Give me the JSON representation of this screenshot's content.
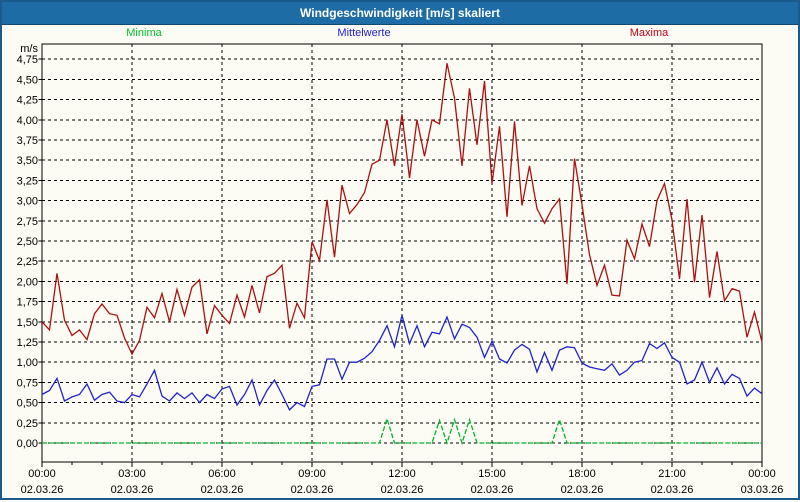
{
  "window": {
    "title": "Windgeschwindigkeit [m/s] skaliert"
  },
  "colors": {
    "title_bar_bg": "#1E6CA5",
    "title_text": "#FFFFFF",
    "window_border": "#1A5A8C",
    "background": "#FCFCF4",
    "grid": "#000000",
    "minima": "#00B42A",
    "mittelwerte": "#2222CC",
    "maxima": "#AC1010",
    "maxima_label": "#C00018"
  },
  "legend": [
    {
      "label": "Minima",
      "color": "#00C030"
    },
    {
      "label": "Mittelwerte",
      "color": "#2020D0"
    },
    {
      "label": "Maxima",
      "color": "#C00018"
    }
  ],
  "chart_data": {
    "type": "line",
    "title": "Windgeschwindigkeit [m/s] skaliert",
    "xlabel": "",
    "ylabel": "m/s",
    "ylim": [
      -0.24,
      4.94
    ],
    "x_hours_range": [
      0,
      24
    ],
    "x_start": 0,
    "x_step_hours": 0.25,
    "grid": "dashed",
    "legend_position": "top",
    "y_ticks": [
      0.0,
      0.25,
      0.5,
      0.75,
      1.0,
      1.25,
      1.5,
      1.75,
      2.0,
      2.25,
      2.5,
      2.75,
      3.0,
      3.25,
      3.5,
      3.75,
      4.0,
      4.25,
      4.5,
      4.75
    ],
    "y_tick_labels": [
      "0,00",
      "0,25",
      "0,50",
      "0,75",
      "1,00",
      "1,25",
      "1,50",
      "1,75",
      "2,00",
      "2,25",
      "2,50",
      "2,75",
      "3,00",
      "3,25",
      "3,50",
      "3,75",
      "4,00",
      "4,25",
      "4,50",
      "4,75"
    ],
    "x_ticks": [
      {
        "time": "00:00",
        "date": "02.03.26"
      },
      {
        "time": "03:00",
        "date": "02.03.26"
      },
      {
        "time": "06:00",
        "date": "02.03.26"
      },
      {
        "time": "09:00",
        "date": "02.03.26"
      },
      {
        "time": "12:00",
        "date": "02.03.26"
      },
      {
        "time": "15:00",
        "date": "02.03.26"
      },
      {
        "time": "18:00",
        "date": "02.03.26"
      },
      {
        "time": "21:00",
        "date": "02.03.26"
      },
      {
        "time": "00:00",
        "date": "03.03.26"
      }
    ],
    "series": [
      {
        "name": "Minima",
        "data_name": "minima-line",
        "color": "#00B42A",
        "dash": "5,2",
        "values": [
          0,
          0,
          0,
          0,
          0,
          0,
          0,
          0,
          0,
          0,
          0,
          0,
          0,
          0,
          0,
          0,
          0,
          0,
          0,
          0,
          0,
          0,
          0,
          0,
          0,
          0,
          0,
          0,
          0,
          0,
          0,
          0,
          0,
          0,
          0,
          0,
          0,
          0,
          0,
          0,
          0,
          0,
          0,
          0,
          0,
          0,
          0.3,
          0,
          0,
          0,
          0,
          0,
          0,
          0.28,
          0,
          0.29,
          0,
          0.29,
          0,
          0,
          0,
          0,
          0,
          0,
          0,
          0,
          0,
          0,
          0,
          0.29,
          0,
          0,
          0,
          0,
          0,
          0,
          0,
          0,
          0,
          0,
          0,
          0,
          0,
          0,
          0,
          0,
          0,
          0,
          0,
          0,
          0,
          0,
          0,
          0,
          0,
          0,
          0
        ]
      },
      {
        "name": "Mittelwerte",
        "data_name": "mittelwerte-line",
        "color": "#2222CC",
        "dash": "",
        "values": [
          0.6,
          0.65,
          0.8,
          0.52,
          0.57,
          0.6,
          0.73,
          0.53,
          0.6,
          0.63,
          0.52,
          0.5,
          0.6,
          0.57,
          0.73,
          0.9,
          0.58,
          0.52,
          0.62,
          0.55,
          0.62,
          0.5,
          0.6,
          0.55,
          0.67,
          0.7,
          0.47,
          0.6,
          0.78,
          0.47,
          0.65,
          0.78,
          0.6,
          0.41,
          0.5,
          0.45,
          0.7,
          0.72,
          1.04,
          1.04,
          0.79,
          1.0,
          1.0,
          1.05,
          1.13,
          1.27,
          1.45,
          1.19,
          1.58,
          1.23,
          1.45,
          1.19,
          1.37,
          1.35,
          1.56,
          1.29,
          1.47,
          1.43,
          1.31,
          1.06,
          1.26,
          1.04,
          0.99,
          1.15,
          1.22,
          1.16,
          0.88,
          1.12,
          0.9,
          1.15,
          1.19,
          1.18,
          0.99,
          0.94,
          0.92,
          0.9,
          0.98,
          0.84,
          0.9,
          1.0,
          1.02,
          1.23,
          1.17,
          1.24,
          1.06,
          1.0,
          0.73,
          0.78,
          1.0,
          0.75,
          0.93,
          0.73,
          0.85,
          0.8,
          0.58,
          0.68,
          0.61
        ]
      },
      {
        "name": "Maxima",
        "data_name": "maxima-line",
        "color": "#AC1010",
        "dash": "",
        "values": [
          1.5,
          1.4,
          2.1,
          1.52,
          1.33,
          1.4,
          1.28,
          1.6,
          1.72,
          1.6,
          1.58,
          1.3,
          1.1,
          1.27,
          1.68,
          1.55,
          1.85,
          1.5,
          1.9,
          1.58,
          1.93,
          2.02,
          1.35,
          1.7,
          1.58,
          1.48,
          1.83,
          1.56,
          1.95,
          1.61,
          2.06,
          2.1,
          2.2,
          1.42,
          1.73,
          1.55,
          2.49,
          2.26,
          3.01,
          2.3,
          3.19,
          2.84,
          2.95,
          3.1,
          3.45,
          3.5,
          4.0,
          3.43,
          4.07,
          3.28,
          4.0,
          3.55,
          4.0,
          3.95,
          4.7,
          4.27,
          3.43,
          4.39,
          3.69,
          4.48,
          3.21,
          3.92,
          2.8,
          3.98,
          2.94,
          3.43,
          2.9,
          2.72,
          2.9,
          3.02,
          1.97,
          3.52,
          2.95,
          2.33,
          1.95,
          2.2,
          1.83,
          1.82,
          2.51,
          2.28,
          2.71,
          2.43,
          3.0,
          3.21,
          2.76,
          2.03,
          3.02,
          1.99,
          2.82,
          1.8,
          2.37,
          1.76,
          1.91,
          1.88,
          1.31,
          1.62,
          1.25
        ]
      }
    ]
  }
}
